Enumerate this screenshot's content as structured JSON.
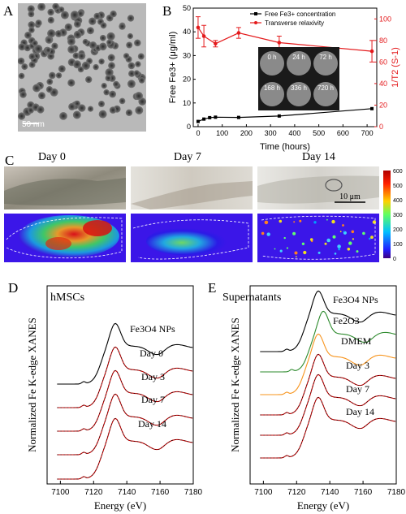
{
  "panels": {
    "a": {
      "letter": "A",
      "scale_bar": "50 nm"
    },
    "b": {
      "letter": "B"
    },
    "c": {
      "letter": "C",
      "days": [
        "Day 0",
        "Day 7",
        "Day 14"
      ],
      "scale_bar": "10 μm",
      "colorbar_ticks": [
        "600",
        "500",
        "400",
        "300",
        "200",
        "100",
        "0"
      ]
    },
    "d": {
      "letter": "D",
      "title": "hMSCs"
    },
    "e": {
      "letter": "E",
      "title": "Supernatants"
    }
  },
  "chart_data": [
    {
      "panel": "B",
      "type": "line",
      "xlabel": "Time (hours)",
      "ylabel_left": "Free Fe3+ (μg/ml)",
      "ylabel_right": "1/T2 (S-1)",
      "xlim": [
        -20,
        740
      ],
      "ylim_left": [
        0,
        50
      ],
      "ylim_right": [
        0,
        110
      ],
      "x_ticks": [
        "0",
        "100",
        "200",
        "300",
        "400",
        "500",
        "600",
        "700"
      ],
      "y_ticks_left": [
        "0",
        "10",
        "20",
        "30",
        "40",
        "50"
      ],
      "y_ticks_right": [
        "0",
        "20",
        "40",
        "60",
        "80",
        "100"
      ],
      "legend": [
        "Free Fe3+ concentration",
        "Transverse relaxivity"
      ],
      "legend_placement": "top-right",
      "colors": {
        "fe": "#000000",
        "relax": "#e41a1c"
      },
      "series": [
        {
          "name": "Free Fe3+ concentration",
          "axis": "left",
          "x": [
            0,
            24,
            48,
            72,
            168,
            336,
            720
          ],
          "y": [
            2.2,
            3.2,
            3.8,
            4.0,
            3.9,
            4.5,
            7.6
          ]
        },
        {
          "name": "Transverse relaxivity",
          "axis": "right",
          "x": [
            0,
            24,
            72,
            168,
            336,
            720
          ],
          "y": [
            92,
            84,
            77,
            87,
            78,
            70
          ],
          "err": [
            10,
            10,
            3,
            5,
            6,
            10
          ]
        }
      ],
      "inset_labels": [
        "0 h",
        "24 h",
        "72 h",
        "168 h",
        "336 h",
        "720 h"
      ]
    },
    {
      "panel": "D",
      "type": "line",
      "xlabel": "Energy (eV)",
      "ylabel": "Normalized Fe K-edge XANES",
      "xlim": [
        7092,
        7180
      ],
      "x_ticks": [
        "7100",
        "7120",
        "7140",
        "7160",
        "7180"
      ],
      "series": [
        {
          "name": "Fe3O4 NPs",
          "color": "#000000"
        },
        {
          "name": "Day 0",
          "color": "#cc0000"
        },
        {
          "name": "Day 3",
          "color": "#cc0000"
        },
        {
          "name": "Day 7",
          "color": "#cc0000"
        },
        {
          "name": "Day 14",
          "color": "#cc0000"
        }
      ]
    },
    {
      "panel": "E",
      "type": "line",
      "xlabel": "Energy (eV)",
      "ylabel": "Normalized Fe K-edge XANES",
      "xlim": [
        7092,
        7180
      ],
      "x_ticks": [
        "7100",
        "7120",
        "7140",
        "7160",
        "7180"
      ],
      "series": [
        {
          "name": "Fe3O4 NPs",
          "color": "#000000"
        },
        {
          "name": "Fe2O3",
          "color": "#2e8b2e"
        },
        {
          "name": "DMEM",
          "color": "#f7941d"
        },
        {
          "name": "Day 3",
          "color": "#cc0000"
        },
        {
          "name": "Day 7",
          "color": "#cc0000"
        },
        {
          "name": "Day 14",
          "color": "#cc0000"
        }
      ]
    }
  ]
}
